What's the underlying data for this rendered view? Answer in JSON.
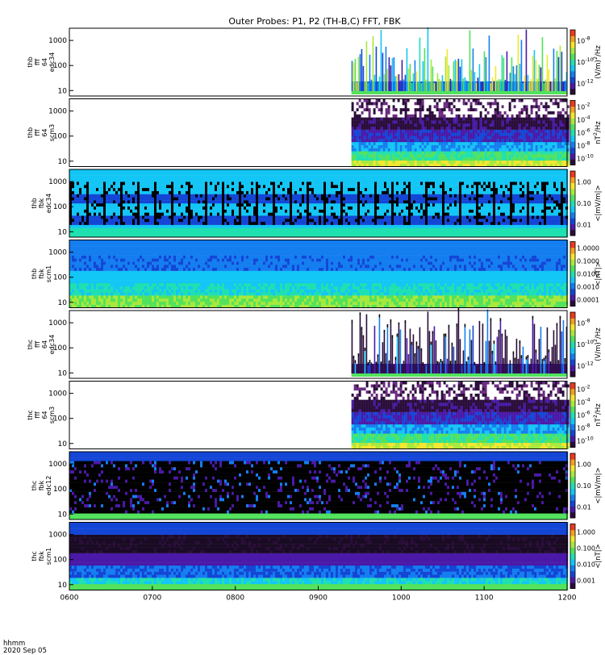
{
  "chart_data": {
    "type": "heatmap",
    "title": "Outer Probes: P1, P2 (TH-B,C) FFT, FBK",
    "x_axis": {
      "ticks": [
        "0600",
        "0700",
        "0800",
        "0900",
        "1000",
        "1100",
        "1200"
      ],
      "range_hours": [
        6,
        12
      ],
      "units_label": "hhmm",
      "date": "2020 Sep 05"
    },
    "palette": [
      "#2a0d3a",
      "#4a19a8",
      "#1446d6",
      "#147ef0",
      "#13c6f5",
      "#1fe0b0",
      "#52e25c",
      "#a8e83c",
      "#f5e62c",
      "#f5a01e",
      "#ef3a1a"
    ],
    "panels": [
      {
        "id": "thb-fff-e",
        "ylabel": [
          "thb",
          "fff",
          "64",
          "edc34"
        ],
        "yticks": [
          "10",
          "100",
          "1000"
        ],
        "colorbar_label": "(V/m)^2/Hz",
        "colorbar_ticks": [
          "10^-12",
          "10^-10",
          "10^-8"
        ],
        "data_starts_hour": 9.4,
        "style": "spiky"
      },
      {
        "id": "thb-fff-b",
        "ylabel": [
          "thb",
          "fff",
          "64",
          "scm3"
        ],
        "yticks": [
          "10",
          "100",
          "1000"
        ],
        "colorbar_label": "nT^2/Hz",
        "colorbar_ticks": [
          "10^-10",
          "10^-8",
          "10^-6",
          "10^-4",
          "10^-2"
        ],
        "data_starts_hour": 9.4,
        "style": "banded"
      },
      {
        "id": "thb-fbk-e",
        "ylabel": [
          "thb",
          "fbk",
          "edc34"
        ],
        "yticks": [
          "10",
          "100",
          "1000"
        ],
        "colorbar_label": "<|mV/m|>",
        "colorbar_ticks": [
          "0.01",
          "0.10",
          "1.00"
        ],
        "data_starts_hour": 6.0,
        "style": "fbk-blue"
      },
      {
        "id": "thb-fbk-b",
        "ylabel": [
          "thb",
          "fbk",
          "scm1"
        ],
        "yticks": [
          "10",
          "100",
          "1000"
        ],
        "colorbar_label": "<|nT|>",
        "colorbar_ticks": [
          "0.0001",
          "0.0010",
          "0.0100",
          "0.1000",
          "1.0000"
        ],
        "data_starts_hour": 6.0,
        "style": "fbk-scm"
      },
      {
        "id": "thc-fff-e",
        "ylabel": [
          "thc",
          "fff",
          "64",
          "edc34"
        ],
        "yticks": [
          "10",
          "100",
          "1000"
        ],
        "colorbar_label": "(V/m)^2/Hz",
        "colorbar_ticks": [
          "10^-12",
          "10^-10",
          "10^-8"
        ],
        "data_starts_hour": 9.4,
        "style": "spiky-dark"
      },
      {
        "id": "thc-fff-b",
        "ylabel": [
          "thc",
          "fff",
          "64",
          "scm3"
        ],
        "yticks": [
          "10",
          "100",
          "1000"
        ],
        "colorbar_label": "nT^2/Hz",
        "colorbar_ticks": [
          "10^-10",
          "10^-8",
          "10^-6",
          "10^-4",
          "10^-2"
        ],
        "data_starts_hour": 9.4,
        "style": "banded"
      },
      {
        "id": "thc-fbk-e",
        "ylabel": [
          "thc",
          "fbk",
          "edc12"
        ],
        "yticks": [
          "10",
          "100",
          "1000"
        ],
        "colorbar_label": "<|mV/m|>",
        "colorbar_ticks": [
          "0.01",
          "0.10",
          "1.00"
        ],
        "data_starts_hour": 6.0,
        "style": "fbk-dark"
      },
      {
        "id": "thc-fbk-b",
        "ylabel": [
          "thc",
          "fbk",
          "scm1"
        ],
        "yticks": [
          "10",
          "100",
          "1000"
        ],
        "colorbar_label": "<|nT|>",
        "colorbar_ticks": [
          "0.001",
          "0.010",
          "0.100",
          "1.000"
        ],
        "data_starts_hour": 6.0,
        "style": "fbk-scm-dark"
      }
    ]
  }
}
